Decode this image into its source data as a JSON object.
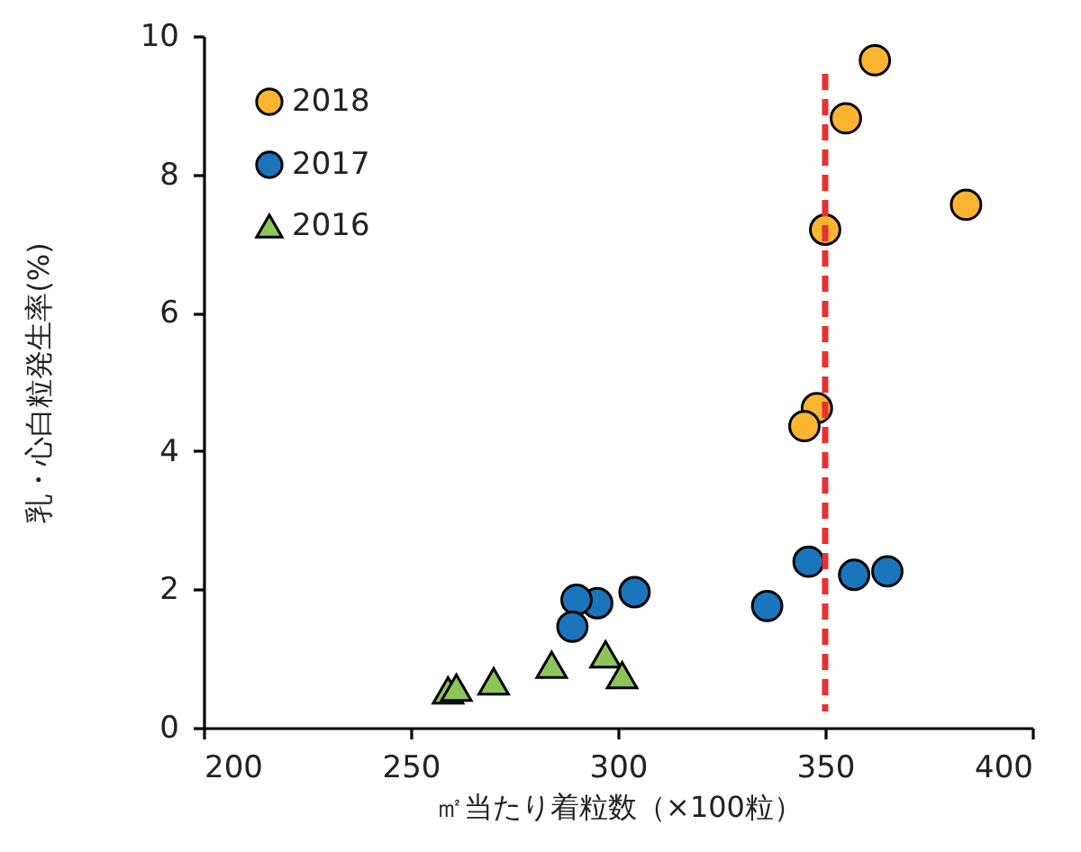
{
  "chart_data": {
    "type": "scatter",
    "xlabel": "㎡当たり着粒数（×100粒）",
    "ylabel": "乳・心白粒発生率(%)",
    "xlim": [
      200,
      400
    ],
    "ylim": [
      0,
      10
    ],
    "xticks": [
      200,
      250,
      300,
      350,
      400
    ],
    "yticks": [
      0,
      2,
      4,
      6,
      8,
      10
    ],
    "grid": false,
    "legend": "top left",
    "series": [
      {
        "name": "2018",
        "color": "#fbb430",
        "marker": "circle",
        "x": [
          362,
          355,
          384,
          350,
          348,
          345
        ],
        "values": [
          9.65,
          8.81,
          7.56,
          7.2,
          4.62,
          4.36
        ]
      },
      {
        "name": "2017",
        "color": "#1a75bc",
        "marker": "circle",
        "x": [
          346,
          357,
          365,
          336,
          304,
          295,
          290,
          289
        ],
        "values": [
          2.4,
          2.21,
          2.26,
          1.76,
          1.96,
          1.8,
          1.85,
          1.46
        ]
      },
      {
        "name": "2016",
        "color": "#8cc65a",
        "marker": "triangle",
        "x": [
          259,
          261,
          270,
          284,
          297,
          301
        ],
        "values": [
          0.54,
          0.58,
          0.67,
          0.91,
          1.06,
          0.76
        ]
      }
    ],
    "ref_lines": [
      {
        "axis": "x",
        "value": 350,
        "color": "#e8312f",
        "line_style": "dashed"
      }
    ]
  }
}
